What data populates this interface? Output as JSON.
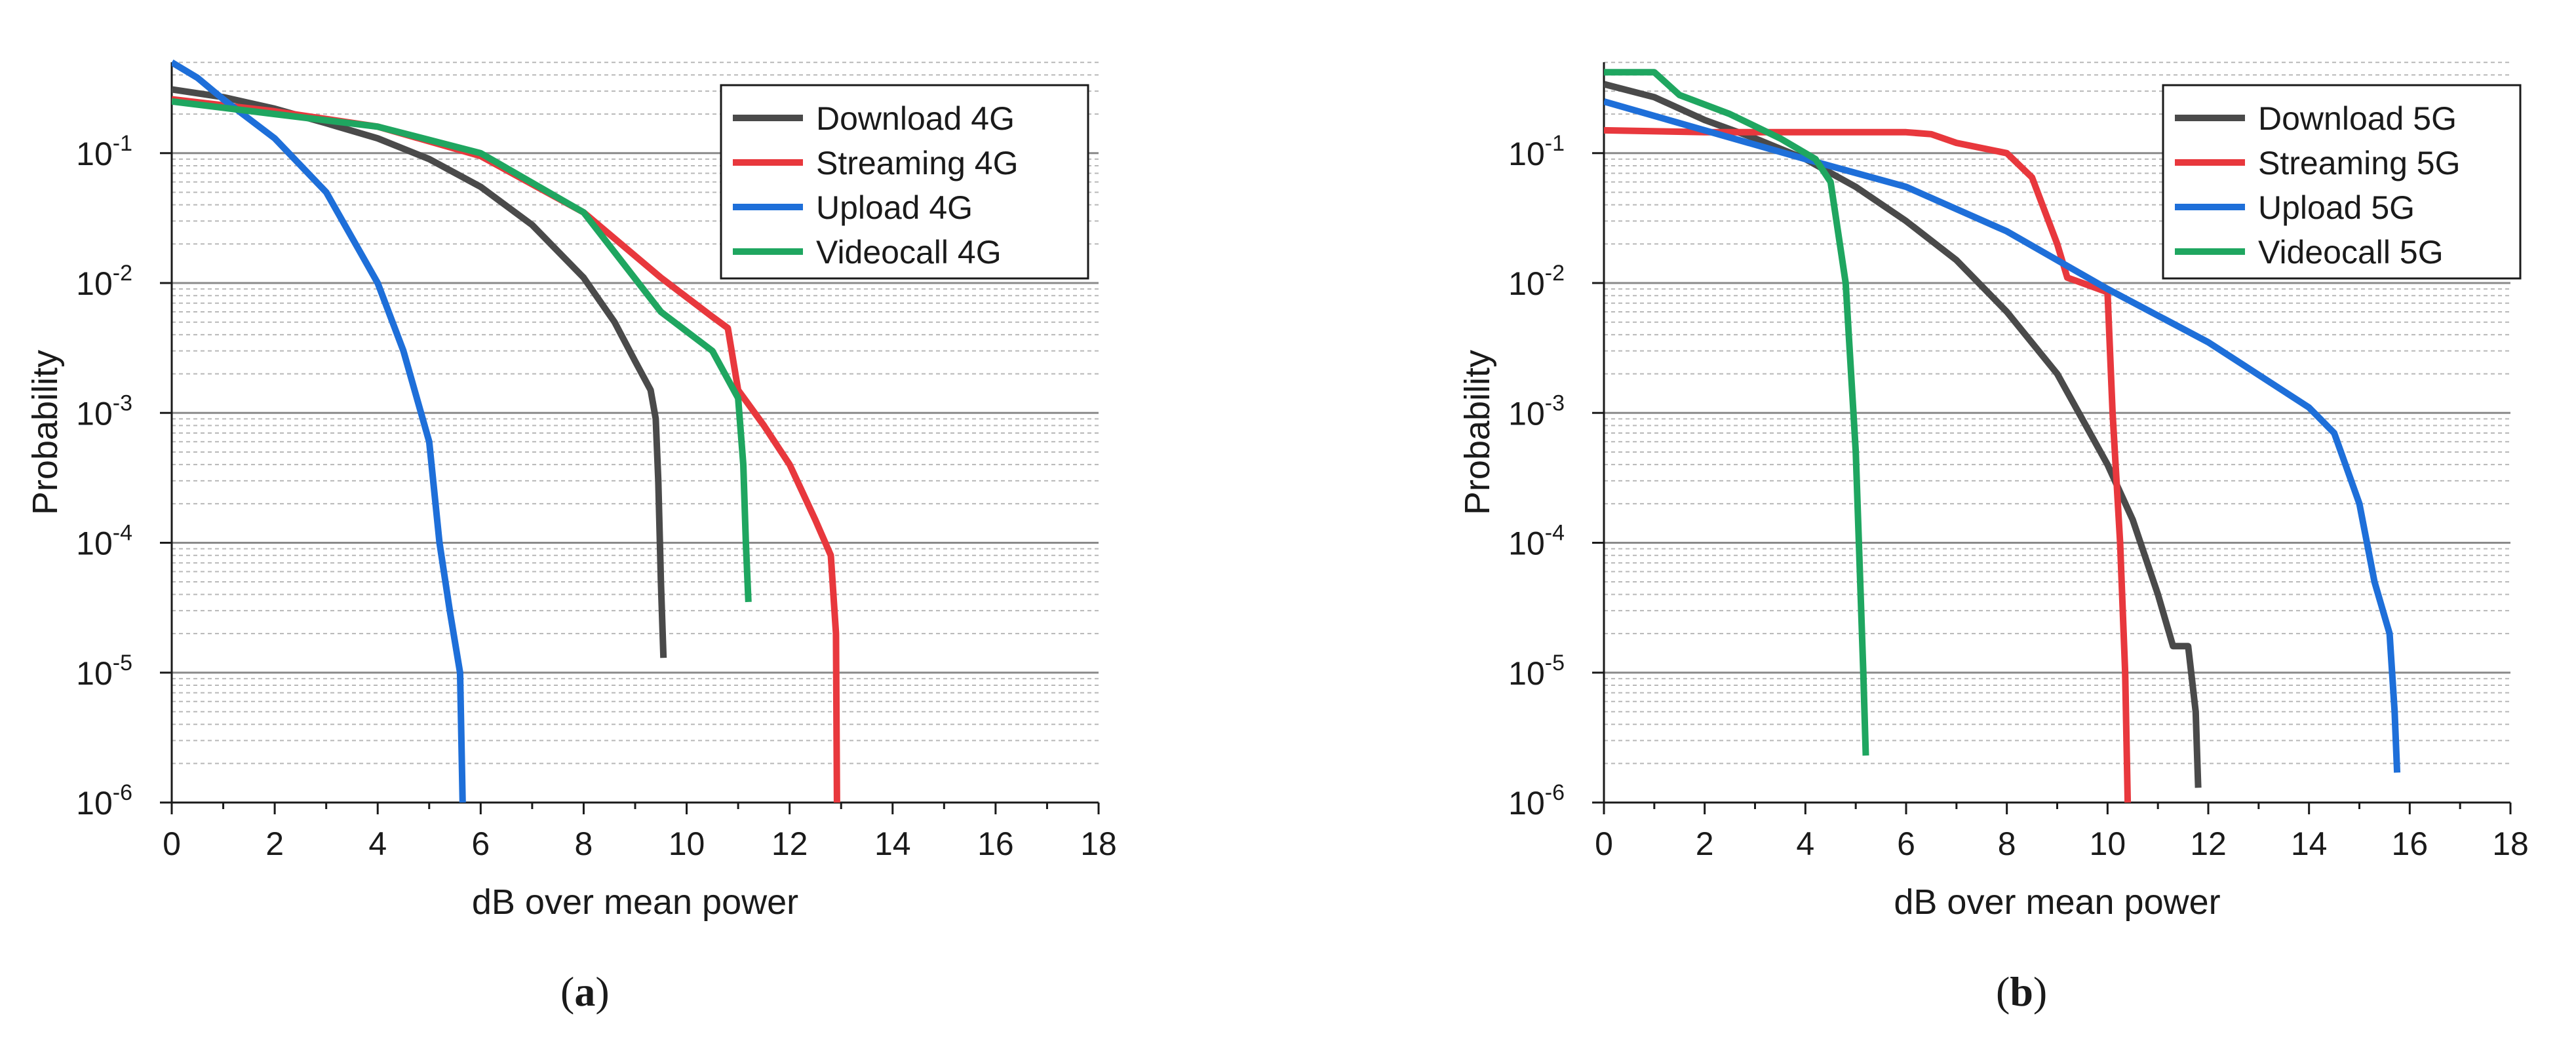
{
  "figure": {
    "panels": [
      {
        "tag_open": "(",
        "tag_letter": "a",
        "tag_close": ")"
      },
      {
        "tag_open": "(",
        "tag_letter": "b",
        "tag_close": ")"
      }
    ]
  },
  "chart_data": [
    {
      "type": "line",
      "title": "",
      "xlabel": "dB over mean power",
      "ylabel": "Probability",
      "xlim": [
        0,
        18
      ],
      "ylim_log10": [
        -6,
        -0.3
      ],
      "yscale": "log",
      "x_ticks": [
        "0",
        "2",
        "4",
        "6",
        "8",
        "10",
        "12",
        "14",
        "16",
        "18"
      ],
      "y_ticks": [
        {
          "base": "10",
          "exp": "-6"
        },
        {
          "base": "10",
          "exp": "-5"
        },
        {
          "base": "10",
          "exp": "-4"
        },
        {
          "base": "10",
          "exp": "-3"
        },
        {
          "base": "10",
          "exp": "-2"
        },
        {
          "base": "10",
          "exp": "-1"
        }
      ],
      "grid": "horizontal major and minor (log)",
      "legend_position": "top-right",
      "series": [
        {
          "name": "Download 4G",
          "color": "#4a4a4a",
          "points": [
            [
              0,
              0.31
            ],
            [
              1,
              0.27
            ],
            [
              2,
              0.22
            ],
            [
              3,
              0.17
            ],
            [
              4,
              0.13
            ],
            [
              5,
              0.09
            ],
            [
              6,
              0.055
            ],
            [
              7,
              0.028
            ],
            [
              8,
              0.011
            ],
            [
              8.6,
              0.005
            ],
            [
              9.0,
              0.0025
            ],
            [
              9.3,
              0.0015
            ],
            [
              9.4,
              0.0009
            ],
            [
              9.45,
              0.0003
            ],
            [
              9.5,
              5e-05
            ],
            [
              9.55,
              1.3e-05
            ]
          ]
        },
        {
          "name": "Streaming 4G",
          "color": "#e8383d",
          "points": [
            [
              0,
              0.26
            ],
            [
              2,
              0.21
            ],
            [
              4,
              0.16
            ],
            [
              6,
              0.095
            ],
            [
              8,
              0.035
            ],
            [
              9.5,
              0.011
            ],
            [
              10.5,
              0.0055
            ],
            [
              10.8,
              0.0045
            ],
            [
              11.0,
              0.0015
            ],
            [
              11.5,
              0.0008
            ],
            [
              12.0,
              0.0004
            ],
            [
              12.5,
              0.00015
            ],
            [
              12.8,
              8e-05
            ],
            [
              12.9,
              2e-05
            ],
            [
              12.92,
              1e-06
            ]
          ]
        },
        {
          "name": "Upload 4G",
          "color": "#1e6fd9",
          "points": [
            [
              0,
              0.5
            ],
            [
              0.5,
              0.38
            ],
            [
              1,
              0.26
            ],
            [
              2,
              0.13
            ],
            [
              3,
              0.05
            ],
            [
              4,
              0.01
            ],
            [
              4.5,
              0.003
            ],
            [
              5,
              0.0006
            ],
            [
              5.2,
              0.0001
            ],
            [
              5.4,
              3e-05
            ],
            [
              5.6,
              1e-05
            ],
            [
              5.65,
              1e-06
            ]
          ]
        },
        {
          "name": "Videocall 4G",
          "color": "#1fa660",
          "points": [
            [
              0,
              0.25
            ],
            [
              2,
              0.2
            ],
            [
              4,
              0.16
            ],
            [
              6,
              0.1
            ],
            [
              8,
              0.035
            ],
            [
              9.5,
              0.006
            ],
            [
              10.5,
              0.003
            ],
            [
              11.0,
              0.0013
            ],
            [
              11.1,
              0.0004
            ],
            [
              11.15,
              0.0001
            ],
            [
              11.2,
              3.5e-05
            ]
          ]
        }
      ]
    },
    {
      "type": "line",
      "title": "",
      "xlabel": "dB over mean power",
      "ylabel": "Probability",
      "xlim": [
        0,
        18
      ],
      "ylim_log10": [
        -6,
        -0.3
      ],
      "yscale": "log",
      "x_ticks": [
        "0",
        "2",
        "4",
        "6",
        "8",
        "10",
        "12",
        "14",
        "16",
        "18"
      ],
      "y_ticks": [
        {
          "base": "10",
          "exp": "-6"
        },
        {
          "base": "10",
          "exp": "-5"
        },
        {
          "base": "10",
          "exp": "-4"
        },
        {
          "base": "10",
          "exp": "-3"
        },
        {
          "base": "10",
          "exp": "-2"
        },
        {
          "base": "10",
          "exp": "-1"
        }
      ],
      "grid": "horizontal major and minor (log)",
      "legend_position": "top-right",
      "series": [
        {
          "name": "Download 5G",
          "color": "#4a4a4a",
          "points": [
            [
              0,
              0.34
            ],
            [
              1,
              0.27
            ],
            [
              2,
              0.18
            ],
            [
              3,
              0.13
            ],
            [
              4,
              0.09
            ],
            [
              5,
              0.055
            ],
            [
              6,
              0.03
            ],
            [
              7,
              0.015
            ],
            [
              8,
              0.006
            ],
            [
              9,
              0.002
            ],
            [
              10,
              0.0004
            ],
            [
              10.5,
              0.00015
            ],
            [
              11,
              4e-05
            ],
            [
              11.3,
              1.6e-05
            ],
            [
              11.6,
              1.6e-05
            ],
            [
              11.75,
              5e-06
            ],
            [
              11.8,
              1.3e-06
            ]
          ]
        },
        {
          "name": "Streaming 5G",
          "color": "#e8383d",
          "points": [
            [
              0,
              0.15
            ],
            [
              2,
              0.145
            ],
            [
              4,
              0.145
            ],
            [
              6,
              0.145
            ],
            [
              6.5,
              0.14
            ],
            [
              7,
              0.12
            ],
            [
              8,
              0.1
            ],
            [
              8.5,
              0.065
            ],
            [
              9,
              0.02
            ],
            [
              9.2,
              0.011
            ],
            [
              9.5,
              0.01
            ],
            [
              10,
              0.0085
            ],
            [
              10.1,
              0.001
            ],
            [
              10.25,
              0.0001
            ],
            [
              10.35,
              1e-05
            ],
            [
              10.4,
              1e-06
            ]
          ]
        },
        {
          "name": "Upload 5G",
          "color": "#1e6fd9",
          "points": [
            [
              0,
              0.25
            ],
            [
              2,
              0.15
            ],
            [
              4,
              0.09
            ],
            [
              6,
              0.055
            ],
            [
              8,
              0.025
            ],
            [
              10,
              0.009
            ],
            [
              12,
              0.0035
            ],
            [
              14,
              0.0011
            ],
            [
              14.5,
              0.0007
            ],
            [
              15,
              0.0002
            ],
            [
              15.3,
              5e-05
            ],
            [
              15.6,
              2e-05
            ],
            [
              15.7,
              5e-06
            ],
            [
              15.75,
              1.7e-06
            ]
          ]
        },
        {
          "name": "Videocall 5G",
          "color": "#1fa660",
          "points": [
            [
              0,
              0.42
            ],
            [
              1,
              0.42
            ],
            [
              1.5,
              0.28
            ],
            [
              2.5,
              0.2
            ],
            [
              3.5,
              0.13
            ],
            [
              4.2,
              0.09
            ],
            [
              4.5,
              0.06
            ],
            [
              4.8,
              0.01
            ],
            [
              5,
              0.0005
            ],
            [
              5.15,
              1e-05
            ],
            [
              5.2,
              2.3e-06
            ]
          ]
        }
      ]
    }
  ]
}
